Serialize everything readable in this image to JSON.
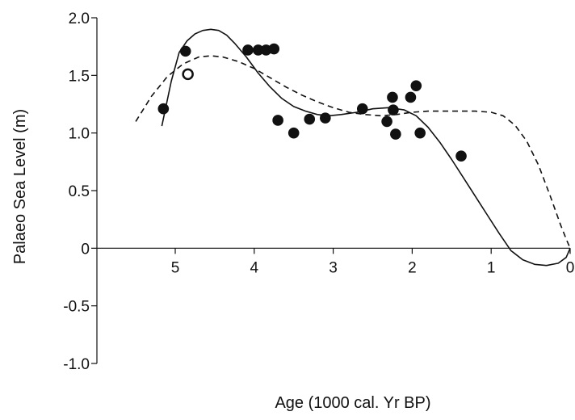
{
  "chart_data": {
    "type": "scatter",
    "xlabel": "Age (1000 cal. Yr BP)",
    "ylabel": "Palaeo Sea Level (m)",
    "xlim": [
      5.85,
      0
    ],
    "ylim": [
      -1.0,
      2.0
    ],
    "x_reversed": true,
    "x_ticks": [
      5,
      4,
      3,
      2,
      1,
      0
    ],
    "x_tick_labels": [
      "5",
      "4",
      "3",
      "2",
      "1",
      "0"
    ],
    "y_ticks": [
      2.0,
      1.5,
      1.0,
      0.5,
      0,
      -0.5,
      -1.0
    ],
    "y_tick_labels": [
      "2.0",
      "1.5",
      "1.0",
      "0.5",
      "0",
      "-0.5",
      "-1.0"
    ],
    "grid": false,
    "baseline_y": 0,
    "colors": {
      "axis": "#111111",
      "points": "#111111",
      "curves": "#111111",
      "background": "#ffffff"
    },
    "points": [
      {
        "x": 5.15,
        "y": 1.21,
        "style": "filled"
      },
      {
        "x": 4.87,
        "y": 1.71,
        "style": "filled"
      },
      {
        "x": 4.84,
        "y": 1.51,
        "style": "open"
      },
      {
        "x": 4.08,
        "y": 1.72,
        "style": "filled"
      },
      {
        "x": 3.95,
        "y": 1.72,
        "style": "filled"
      },
      {
        "x": 3.85,
        "y": 1.72,
        "style": "filled"
      },
      {
        "x": 3.75,
        "y": 1.73,
        "style": "filled"
      },
      {
        "x": 3.7,
        "y": 1.11,
        "style": "filled"
      },
      {
        "x": 3.5,
        "y": 1.0,
        "style": "filled"
      },
      {
        "x": 3.3,
        "y": 1.12,
        "style": "filled"
      },
      {
        "x": 3.1,
        "y": 1.13,
        "style": "filled"
      },
      {
        "x": 2.63,
        "y": 1.21,
        "style": "filled"
      },
      {
        "x": 2.32,
        "y": 1.1,
        "style": "filled"
      },
      {
        "x": 2.25,
        "y": 1.31,
        "style": "filled"
      },
      {
        "x": 2.24,
        "y": 1.2,
        "style": "filled"
      },
      {
        "x": 2.21,
        "y": 0.99,
        "style": "filled"
      },
      {
        "x": 2.02,
        "y": 1.31,
        "style": "filled"
      },
      {
        "x": 1.95,
        "y": 1.41,
        "style": "filled"
      },
      {
        "x": 1.9,
        "y": 1.0,
        "style": "filled"
      },
      {
        "x": 1.38,
        "y": 0.8,
        "style": "filled"
      }
    ],
    "series": [
      {
        "style": "solid",
        "x": [
          5.17,
          5.05,
          4.95,
          4.85,
          4.75,
          4.65,
          4.55,
          4.45,
          4.35,
          4.25,
          4.1,
          3.95,
          3.8,
          3.65,
          3.5,
          3.35,
          3.2,
          3.05,
          2.9,
          2.7,
          2.5,
          2.3,
          2.1,
          1.95,
          1.8,
          1.65,
          1.5,
          1.35,
          1.2,
          1.05,
          0.9,
          0.75,
          0.6,
          0.45,
          0.3,
          0.15,
          0.05,
          0.0
        ],
        "y": [
          1.06,
          1.45,
          1.7,
          1.8,
          1.86,
          1.89,
          1.9,
          1.89,
          1.85,
          1.78,
          1.66,
          1.52,
          1.4,
          1.3,
          1.23,
          1.19,
          1.16,
          1.15,
          1.16,
          1.18,
          1.21,
          1.22,
          1.2,
          1.15,
          1.05,
          0.92,
          0.77,
          0.61,
          0.45,
          0.29,
          0.13,
          -0.02,
          -0.1,
          -0.14,
          -0.15,
          -0.13,
          -0.08,
          0.0
        ]
      },
      {
        "style": "dashed",
        "x": [
          5.5,
          5.3,
          5.1,
          4.9,
          4.7,
          4.55,
          4.4,
          4.2,
          4.0,
          3.8,
          3.6,
          3.4,
          3.2,
          3.0,
          2.8,
          2.6,
          2.4,
          2.2,
          2.0,
          1.8,
          1.6,
          1.4,
          1.2,
          1.0,
          0.85,
          0.7,
          0.55,
          0.4,
          0.25,
          0.12,
          0.05,
          0.0
        ],
        "y": [
          1.1,
          1.32,
          1.49,
          1.6,
          1.66,
          1.67,
          1.66,
          1.62,
          1.56,
          1.48,
          1.4,
          1.33,
          1.27,
          1.22,
          1.18,
          1.16,
          1.15,
          1.16,
          1.18,
          1.19,
          1.19,
          1.19,
          1.19,
          1.18,
          1.15,
          1.07,
          0.93,
          0.72,
          0.45,
          0.2,
          0.08,
          0.0
        ]
      }
    ]
  }
}
